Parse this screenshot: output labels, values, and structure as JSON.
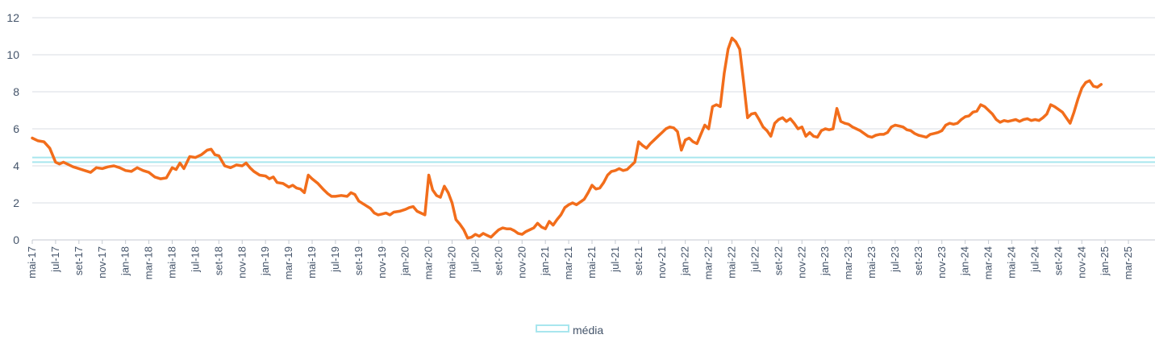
{
  "chart_data": {
    "type": "line",
    "title": "",
    "xlabel": "",
    "ylabel": "",
    "ylim": [
      0,
      12
    ],
    "yticks": [
      0,
      2,
      4,
      6,
      8,
      10,
      12
    ],
    "grid": true,
    "legend_position": "bottom-center",
    "x_start": "mai-17",
    "x_end": "mai-25",
    "x_tick_labels": [
      "mai-17",
      "jul-17",
      "set-17",
      "nov-17",
      "jan-18",
      "mar-18",
      "mai-18",
      "jul-18",
      "set-18",
      "nov-18",
      "jan-19",
      "mar-19",
      "mai-19",
      "jul-19",
      "set-19",
      "nov-19",
      "jan-20",
      "mar-20",
      "mai-20",
      "jul-20",
      "set-20",
      "nov-20",
      "jan-21",
      "mar-21",
      "mai-21",
      "jul-21",
      "set-21",
      "nov-21",
      "jan-22",
      "mar-22",
      "mai-22",
      "jul-22",
      "set-22",
      "nov-22",
      "jan-23",
      "mar-23",
      "mai-23",
      "jul-23",
      "set-23",
      "nov-23",
      "jan-24",
      "mar-24",
      "mai-24",
      "jul-24",
      "set-24",
      "nov-24",
      "jan-25",
      "mar-25"
    ],
    "series": [
      {
        "color": "#f26d1b",
        "points": [
          [
            "mai-17",
            5.5
          ],
          [
            "mai-17",
            5.35
          ],
          [
            "jun-17",
            5.3
          ],
          [
            "jun-17",
            4.95
          ],
          [
            "jul-17",
            4.2
          ],
          [
            "jul-17",
            4.1
          ],
          [
            "jul-17",
            4.2
          ],
          [
            "ago-17",
            4.1
          ],
          [
            "ago-17",
            3.95
          ],
          [
            "set-17",
            3.85
          ],
          [
            "set-17",
            3.75
          ],
          [
            "out-17",
            3.65
          ],
          [
            "out-17",
            3.9
          ],
          [
            "nov-17",
            3.85
          ],
          [
            "nov-17",
            3.95
          ],
          [
            "dez-17",
            4.0
          ],
          [
            "dez-17",
            3.9
          ],
          [
            "jan-18",
            3.75
          ],
          [
            "jan-18",
            3.7
          ],
          [
            "fev-18",
            3.9
          ],
          [
            "fev-18",
            3.75
          ],
          [
            "mar-18",
            3.65
          ],
          [
            "mar-18",
            3.4
          ],
          [
            "abr-18",
            3.3
          ],
          [
            "abr-18",
            3.35
          ],
          [
            "mai-18",
            3.9
          ],
          [
            "mai-18",
            3.8
          ],
          [
            "mai-18",
            4.15
          ],
          [
            "jun-18",
            3.85
          ],
          [
            "jun-18",
            4.5
          ],
          [
            "jul-18",
            4.45
          ],
          [
            "jul-18",
            4.6
          ],
          [
            "ago-18",
            4.85
          ],
          [
            "ago-18",
            4.9
          ],
          [
            "ago-18",
            4.6
          ],
          [
            "set-18",
            4.55
          ],
          [
            "set-18",
            4.0
          ],
          [
            "out-18",
            3.9
          ],
          [
            "out-18",
            4.05
          ],
          [
            "nov-18",
            4.0
          ],
          [
            "nov-18",
            4.15
          ],
          [
            "nov-18",
            3.9
          ],
          [
            "dez-18",
            3.7
          ],
          [
            "dez-18",
            3.5
          ],
          [
            "jan-19",
            3.45
          ],
          [
            "jan-19",
            3.3
          ],
          [
            "jan-19",
            3.4
          ],
          [
            "fev-19",
            3.1
          ],
          [
            "fev-19",
            3.05
          ],
          [
            "mar-19",
            2.85
          ],
          [
            "mar-19",
            2.95
          ],
          [
            "mar-19",
            2.8
          ],
          [
            "abr-19",
            2.75
          ],
          [
            "abr-19",
            2.55
          ],
          [
            "abr-19",
            3.5
          ],
          [
            "mai-19",
            3.3
          ],
          [
            "mai-19",
            3.05
          ],
          [
            "jun-19",
            2.7
          ],
          [
            "jun-19",
            2.5
          ],
          [
            "jun-19",
            2.35
          ],
          [
            "jul-19",
            2.35
          ],
          [
            "jul-19",
            2.4
          ],
          [
            "ago-19",
            2.35
          ],
          [
            "ago-19",
            2.55
          ],
          [
            "ago-19",
            2.45
          ],
          [
            "set-19",
            2.1
          ],
          [
            "set-19",
            1.9
          ],
          [
            "out-19",
            1.7
          ],
          [
            "out-19",
            1.45
          ],
          [
            "out-19",
            1.35
          ],
          [
            "nov-19",
            1.4
          ],
          [
            "nov-19",
            1.45
          ],
          [
            "nov-19",
            1.35
          ],
          [
            "dez-19",
            1.5
          ],
          [
            "dez-19",
            1.55
          ],
          [
            "jan-20",
            1.65
          ],
          [
            "jan-20",
            1.75
          ],
          [
            "jan-20",
            1.8
          ],
          [
            "fev-20",
            1.55
          ],
          [
            "fev-20",
            1.45
          ],
          [
            "fev-20",
            1.35
          ],
          [
            "mar-20",
            3.5
          ],
          [
            "mar-20",
            2.7
          ],
          [
            "mar-20",
            2.4
          ],
          [
            "abr-20",
            2.3
          ],
          [
            "abr-20",
            2.9
          ],
          [
            "abr-20",
            2.55
          ],
          [
            "mai-20",
            2.0
          ],
          [
            "mai-20",
            1.1
          ],
          [
            "mai-20",
            0.85
          ],
          [
            "jun-20",
            0.55
          ],
          [
            "jun-20",
            0.1
          ],
          [
            "jun-20",
            0.15
          ],
          [
            "jul-20",
            0.3
          ],
          [
            "jul-20",
            0.2
          ],
          [
            "jul-20",
            0.35
          ],
          [
            "ago-20",
            0.25
          ],
          [
            "ago-20",
            0.15
          ],
          [
            "ago-20",
            0.35
          ],
          [
            "set-20",
            0.55
          ],
          [
            "set-20",
            0.65
          ],
          [
            "set-20",
            0.6
          ],
          [
            "out-20",
            0.6
          ],
          [
            "out-20",
            0.5
          ],
          [
            "out-20",
            0.35
          ],
          [
            "nov-20",
            0.3
          ],
          [
            "nov-20",
            0.45
          ],
          [
            "nov-20",
            0.55
          ],
          [
            "dez-20",
            0.65
          ],
          [
            "dez-20",
            0.9
          ],
          [
            "dez-20",
            0.7
          ],
          [
            "jan-21",
            0.6
          ],
          [
            "jan-21",
            1.0
          ],
          [
            "jan-21",
            0.8
          ],
          [
            "fev-21",
            1.1
          ],
          [
            "fev-21",
            1.35
          ],
          [
            "fev-21",
            1.75
          ],
          [
            "mar-21",
            1.9
          ],
          [
            "mar-21",
            2.0
          ],
          [
            "mar-21",
            1.9
          ],
          [
            "abr-21",
            2.05
          ],
          [
            "abr-21",
            2.2
          ],
          [
            "abr-21",
            2.55
          ],
          [
            "mai-21",
            2.95
          ],
          [
            "mai-21",
            2.75
          ],
          [
            "mai-21",
            2.8
          ],
          [
            "jun-21",
            3.1
          ],
          [
            "jun-21",
            3.5
          ],
          [
            "jun-21",
            3.7
          ],
          [
            "jul-21",
            3.75
          ],
          [
            "jul-21",
            3.85
          ],
          [
            "jul-21",
            3.75
          ],
          [
            "ago-21",
            3.8
          ],
          [
            "ago-21",
            4.0
          ],
          [
            "ago-21",
            4.2
          ],
          [
            "set-21",
            5.3
          ],
          [
            "set-21",
            5.1
          ],
          [
            "set-21",
            4.95
          ],
          [
            "out-21",
            5.2
          ],
          [
            "out-21",
            5.4
          ],
          [
            "out-21",
            5.6
          ],
          [
            "nov-21",
            5.8
          ],
          [
            "nov-21",
            6.0
          ],
          [
            "nov-21",
            6.1
          ],
          [
            "dez-21",
            6.05
          ],
          [
            "dez-21",
            5.85
          ],
          [
            "dez-21",
            4.85
          ],
          [
            "jan-22",
            5.4
          ],
          [
            "jan-22",
            5.5
          ],
          [
            "jan-22",
            5.3
          ],
          [
            "fev-22",
            5.2
          ],
          [
            "fev-22",
            5.7
          ],
          [
            "fev-22",
            6.2
          ],
          [
            "mar-22",
            6.0
          ],
          [
            "mar-22",
            7.2
          ],
          [
            "mar-22",
            7.3
          ],
          [
            "abr-22",
            7.2
          ],
          [
            "abr-22",
            9.0
          ],
          [
            "abr-22",
            10.3
          ],
          [
            "mai-22",
            10.9
          ],
          [
            "mai-22",
            10.7
          ],
          [
            "mai-22",
            10.3
          ],
          [
            "jun-22",
            8.5
          ],
          [
            "jun-22",
            6.6
          ],
          [
            "jun-22",
            6.8
          ],
          [
            "jul-22",
            6.85
          ],
          [
            "jul-22",
            6.5
          ],
          [
            "jul-22",
            6.1
          ],
          [
            "ago-22",
            5.9
          ],
          [
            "ago-22",
            5.6
          ],
          [
            "ago-22",
            6.3
          ],
          [
            "set-22",
            6.5
          ],
          [
            "set-22",
            6.6
          ],
          [
            "set-22",
            6.4
          ],
          [
            "out-22",
            6.55
          ],
          [
            "out-22",
            6.3
          ],
          [
            "out-22",
            6.0
          ],
          [
            "nov-22",
            6.1
          ],
          [
            "nov-22",
            5.6
          ],
          [
            "nov-22",
            5.8
          ],
          [
            "dez-22",
            5.6
          ],
          [
            "dez-22",
            5.55
          ],
          [
            "dez-22",
            5.9
          ],
          [
            "jan-23",
            6.0
          ],
          [
            "jan-23",
            5.95
          ],
          [
            "jan-23",
            6.0
          ],
          [
            "fev-23",
            7.1
          ],
          [
            "fev-23",
            6.4
          ],
          [
            "fev-23",
            6.3
          ],
          [
            "mar-23",
            6.25
          ],
          [
            "mar-23",
            6.1
          ],
          [
            "mar-23",
            6.0
          ],
          [
            "abr-23",
            5.9
          ],
          [
            "abr-23",
            5.75
          ],
          [
            "abr-23",
            5.6
          ],
          [
            "mai-23",
            5.55
          ],
          [
            "mai-23",
            5.65
          ],
          [
            "mai-23",
            5.7
          ],
          [
            "jun-23",
            5.7
          ],
          [
            "jun-23",
            5.8
          ],
          [
            "jun-23",
            6.1
          ],
          [
            "jul-23",
            6.2
          ],
          [
            "jul-23",
            6.15
          ],
          [
            "jul-23",
            6.1
          ],
          [
            "ago-23",
            5.95
          ],
          [
            "ago-23",
            5.9
          ],
          [
            "ago-23",
            5.75
          ],
          [
            "set-23",
            5.65
          ],
          [
            "set-23",
            5.6
          ],
          [
            "set-23",
            5.55
          ],
          [
            "out-23",
            5.7
          ],
          [
            "out-23",
            5.75
          ],
          [
            "out-23",
            5.8
          ],
          [
            "nov-23",
            5.9
          ],
          [
            "nov-23",
            6.2
          ],
          [
            "nov-23",
            6.3
          ],
          [
            "dez-23",
            6.25
          ],
          [
            "dez-23",
            6.3
          ],
          [
            "dez-23",
            6.5
          ],
          [
            "jan-24",
            6.65
          ],
          [
            "jan-24",
            6.7
          ],
          [
            "jan-24",
            6.9
          ],
          [
            "fev-24",
            6.95
          ],
          [
            "fev-24",
            7.3
          ],
          [
            "fev-24",
            7.2
          ],
          [
            "mar-24",
            7.0
          ],
          [
            "mar-24",
            6.8
          ],
          [
            "mar-24",
            6.5
          ],
          [
            "abr-24",
            6.35
          ],
          [
            "abr-24",
            6.45
          ],
          [
            "abr-24",
            6.4
          ],
          [
            "mai-24",
            6.45
          ],
          [
            "mai-24",
            6.5
          ],
          [
            "mai-24",
            6.4
          ],
          [
            "jun-24",
            6.5
          ],
          [
            "jun-24",
            6.55
          ],
          [
            "jun-24",
            6.45
          ],
          [
            "jul-24",
            6.5
          ],
          [
            "jul-24",
            6.45
          ],
          [
            "jul-24",
            6.6
          ],
          [
            "ago-24",
            6.8
          ],
          [
            "ago-24",
            7.3
          ],
          [
            "ago-24",
            7.2
          ],
          [
            "set-24",
            7.05
          ],
          [
            "set-24",
            6.9
          ],
          [
            "set-24",
            6.6
          ],
          [
            "out-24",
            6.3
          ],
          [
            "out-24",
            6.9
          ],
          [
            "out-24",
            7.6
          ],
          [
            "nov-24",
            8.2
          ],
          [
            "nov-24",
            8.5
          ],
          [
            "nov-24",
            8.6
          ],
          [
            "dez-24",
            8.3
          ],
          [
            "dez-24",
            8.25
          ],
          [
            "dez-24",
            8.4
          ]
        ]
      },
      {
        "name": "média",
        "type": "band",
        "values": [
          4.2,
          4.45
        ],
        "color": "#a8e6ee"
      }
    ]
  }
}
